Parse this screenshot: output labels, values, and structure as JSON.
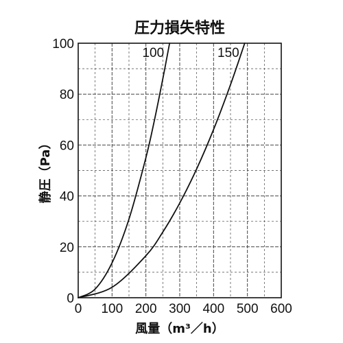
{
  "chart_data": {
    "type": "line",
    "title": "圧力損失特性",
    "xlabel": "風量（m³／h）",
    "ylabel": "静圧（Pa）",
    "xlim": [
      0,
      600
    ],
    "ylim": [
      0,
      100
    ],
    "xticks": [
      0,
      100,
      200,
      300,
      400,
      500,
      600
    ],
    "yticks": [
      0,
      20,
      40,
      60,
      80,
      100
    ],
    "x_tick_labels": [
      "0",
      "100",
      "200",
      "300",
      "400",
      "500",
      "600"
    ],
    "y_tick_labels": [
      "0",
      "20",
      "40",
      "60",
      "80",
      "100"
    ],
    "grid": true,
    "legend": "none",
    "line_color": "#111111",
    "grid_color": "#444444",
    "series": [
      {
        "label": "100",
        "x": [
          0,
          50,
          100,
          150,
          200,
          225,
          250,
          270
        ],
        "y": [
          0,
          3.4,
          13.7,
          30.9,
          55,
          69.6,
          86,
          100
        ]
      },
      {
        "label": "150",
        "x": [
          0,
          100,
          200,
          250,
          300,
          350,
          400,
          450,
          492
        ],
        "y": [
          0,
          4.1,
          16.5,
          25.8,
          37.2,
          50.6,
          66.1,
          83.7,
          100
        ]
      }
    ]
  }
}
